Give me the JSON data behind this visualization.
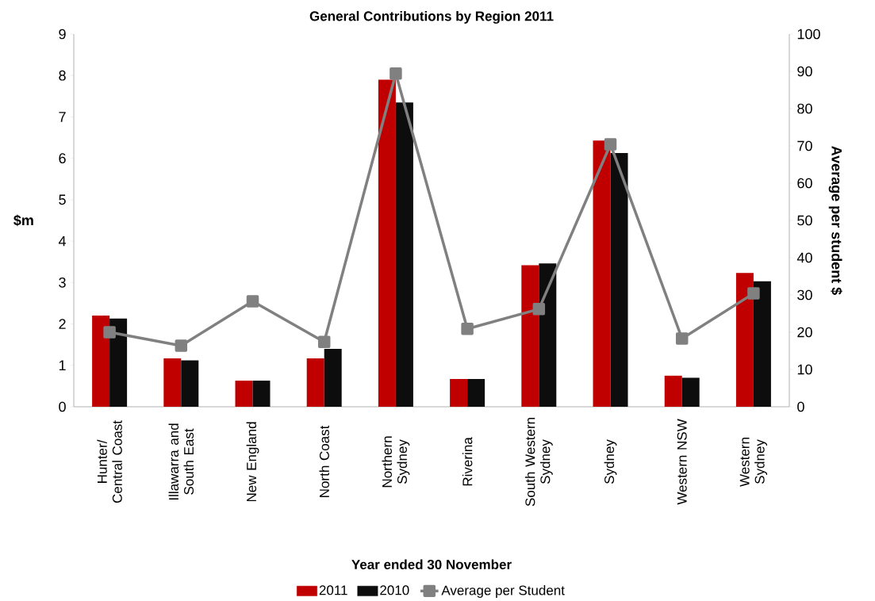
{
  "chart_data": {
    "type": "bar",
    "title": "General Contributions by Region 2011",
    "xlabel": "Year ended 30 November",
    "ylabel": "$m",
    "y2label": "Average per student $",
    "categories": [
      "Hunter/ Central Coast",
      "Illawarra and South East",
      "New England",
      "North Coast",
      "Northern Sydney",
      "Riverina",
      "South Western Sydney",
      "Sydney",
      "Western NSW",
      "Western Sydney"
    ],
    "series": [
      {
        "name": "2011",
        "color": "#c00000",
        "values": [
          2.2,
          1.17,
          0.63,
          1.17,
          7.9,
          0.67,
          3.42,
          6.43,
          0.75,
          3.23
        ]
      },
      {
        "name": "2010",
        "color": "#0d0d0d",
        "values": [
          2.13,
          1.12,
          0.63,
          1.4,
          7.35,
          0.67,
          3.46,
          6.13,
          0.7,
          3.03
        ]
      },
      {
        "name": "Average per Student",
        "type": "line",
        "axis": "y2",
        "color": "#808080",
        "values": [
          20,
          16.4,
          28.3,
          17.4,
          89.4,
          20.9,
          26.2,
          70.4,
          18.3,
          30.4
        ]
      }
    ],
    "ylim": [
      0,
      9
    ],
    "yticks": [
      0,
      1,
      2,
      3,
      4,
      5,
      6,
      7,
      8,
      9
    ],
    "y2lim": [
      0,
      100
    ],
    "y2ticks": [
      0,
      10,
      20,
      30,
      40,
      50,
      60,
      70,
      80,
      90,
      100
    ],
    "legend": "bottom",
    "marker": "square",
    "grid": false
  }
}
